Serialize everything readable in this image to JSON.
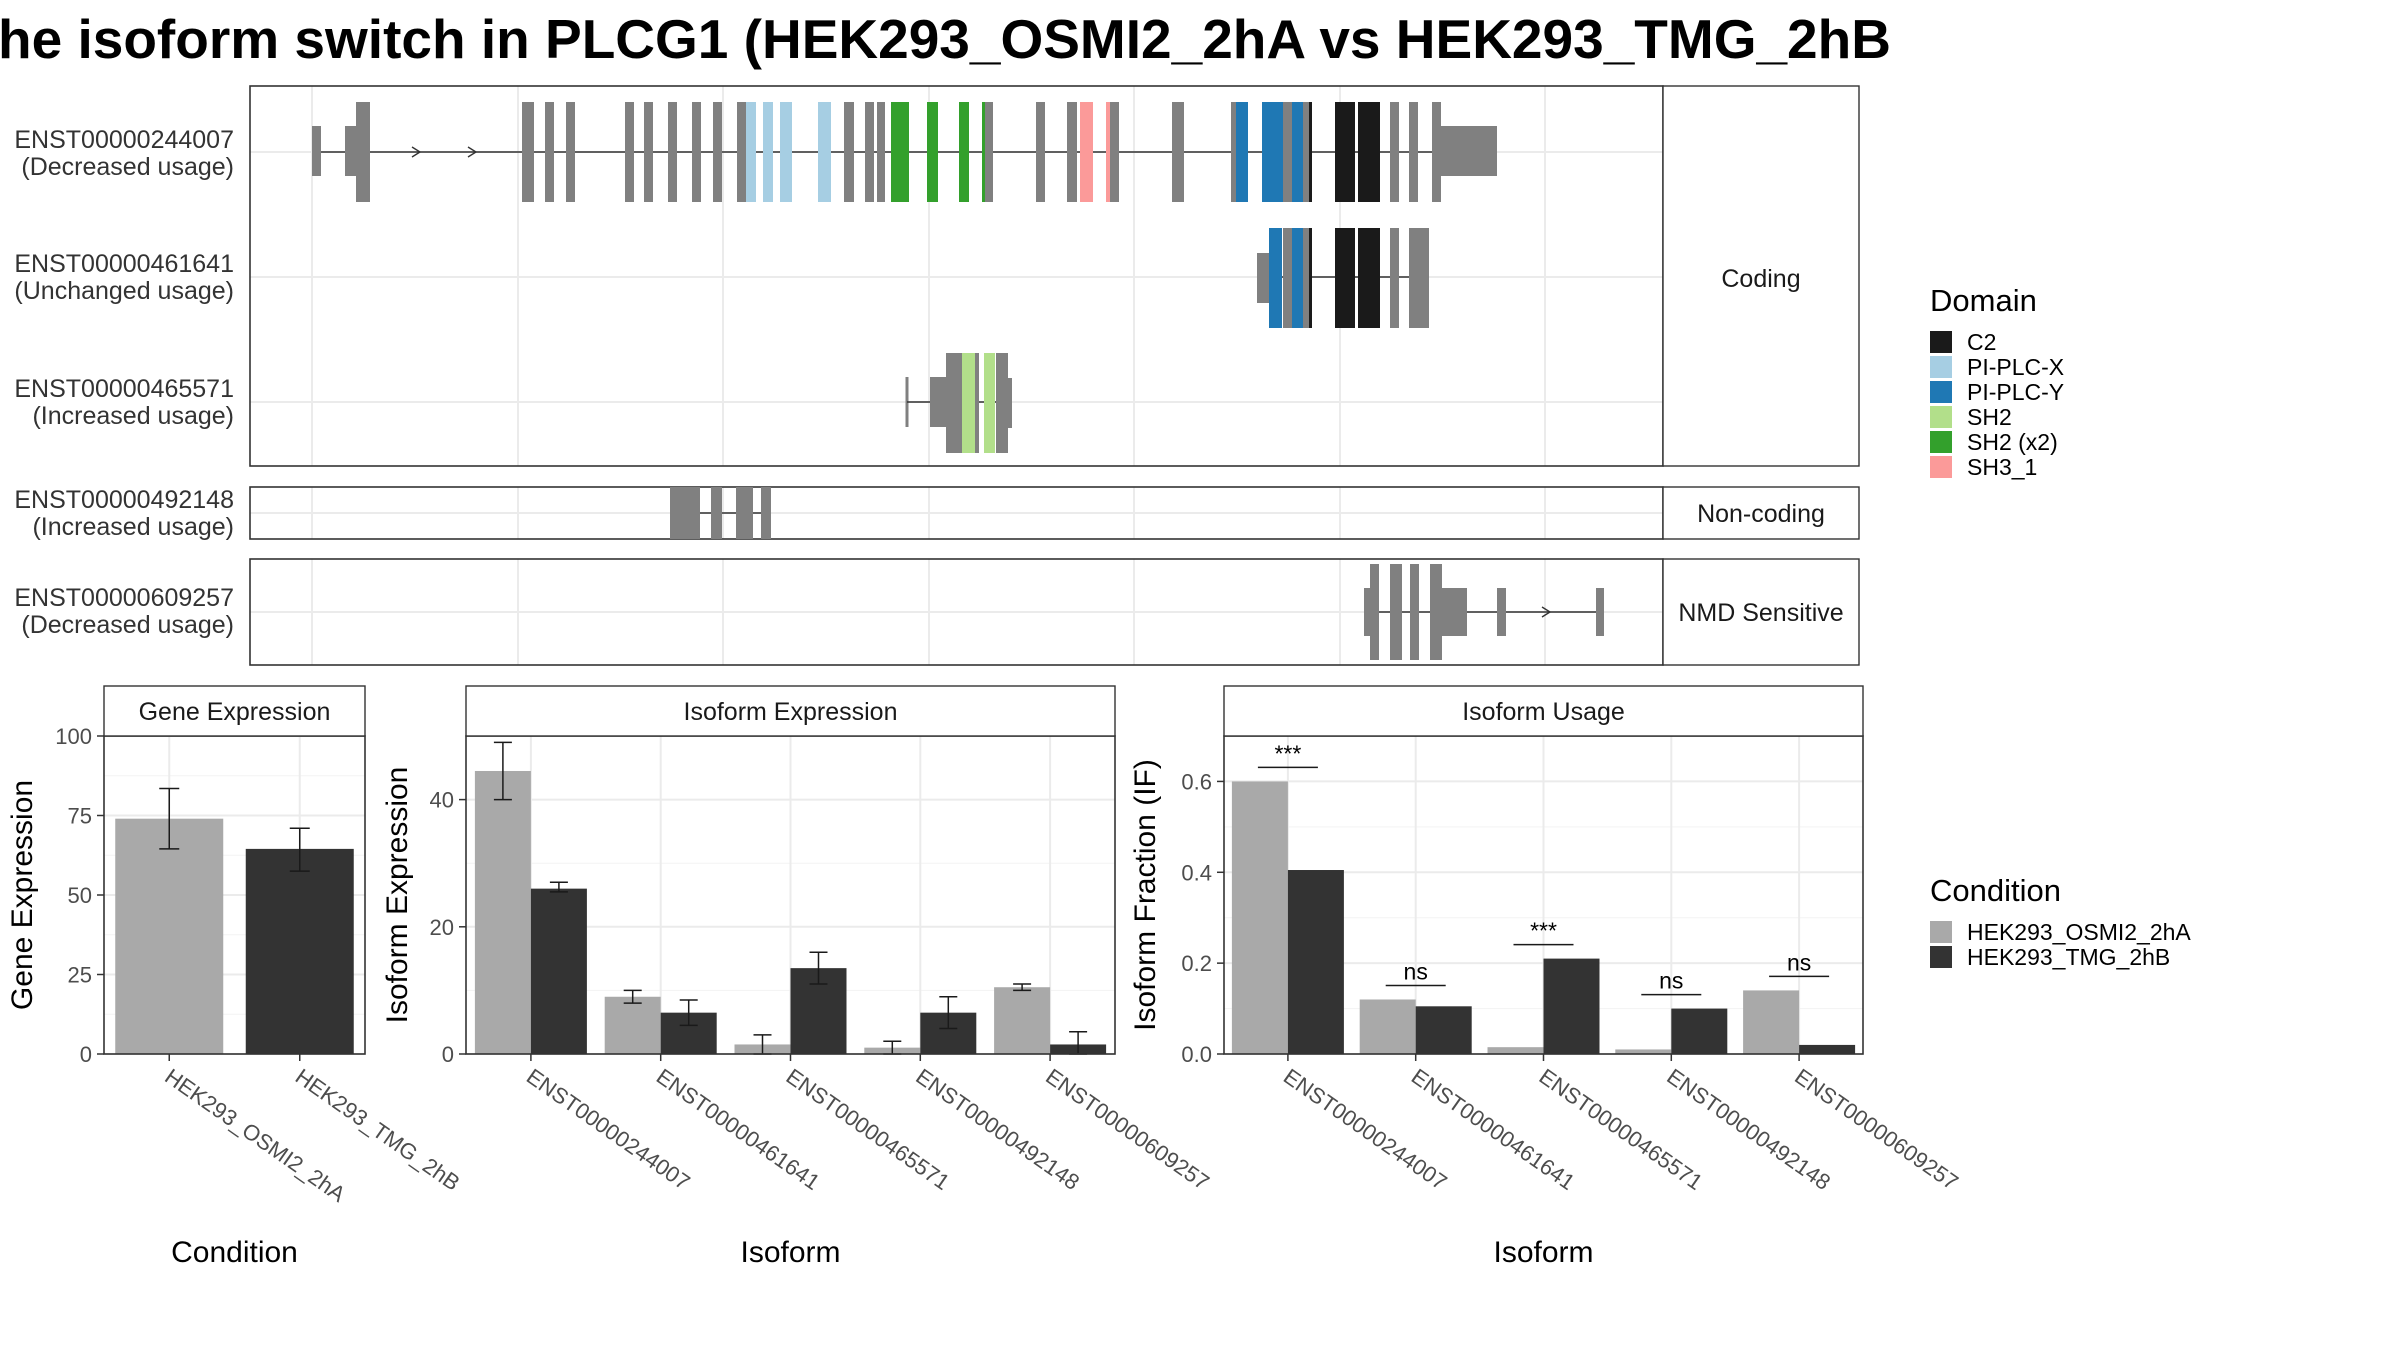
{
  "title": "he isoform switch in PLCG1 (HEK293_OSMI2_2hA vs HEK293_TMG_2hB",
  "colors": {
    "C2": "#1a1a1a",
    "PI-PLC-X": "#a6cee3",
    "PI-PLC-Y": "#1f78b4",
    "SH2": "#b2df8a",
    "SH2 (x2)": "#33a02c",
    "SH3_1": "#fb9a99",
    "exon": "#808080",
    "cond1": "#a9a9a9",
    "cond2": "#333333"
  },
  "transcripts": {
    "t1": {
      "id": "ENST00000244007",
      "usage": "(Decreased usage)"
    },
    "t2": {
      "id": "ENST00000461641",
      "usage": "(Unchanged usage)"
    },
    "t3": {
      "id": "ENST00000465571",
      "usage": "(Increased usage)"
    },
    "t4": {
      "id": "ENST00000492148",
      "usage": "(Increased usage)"
    },
    "t5": {
      "id": "ENST00000609257",
      "usage": "(Decreased usage)"
    }
  },
  "groups": {
    "coding": "Coding",
    "noncoding": "Non-coding",
    "nmd": "NMD Sensitive"
  },
  "legend_domain": {
    "title": "Domain",
    "items": [
      "C2",
      "PI-PLC-X",
      "PI-PLC-Y",
      "SH2",
      "SH2 (x2)",
      "SH3_1"
    ]
  },
  "legend_condition": {
    "title": "Condition",
    "items": [
      "HEK293_OSMI2_2hA",
      "HEK293_TMG_2hB"
    ]
  },
  "chart_data": [
    {
      "type": "bar",
      "title": "Gene Expression",
      "xlabel": "Condition",
      "ylabel": "Gene Expression",
      "categories": [
        "HEK293_OSMI2_2hA",
        "HEK293_TMG_2hB"
      ],
      "values": [
        74,
        64.5
      ],
      "error_low": [
        64.5,
        57.5
      ],
      "error_high": [
        83.5,
        71
      ],
      "ylim": [
        0,
        100
      ],
      "yticks": [
        "0",
        "25",
        "50",
        "75",
        "100"
      ]
    },
    {
      "type": "bar",
      "title": "Isoform Expression",
      "xlabel": "Isoform",
      "ylabel": "Isoform Expression",
      "categories": [
        "ENST00000244007",
        "ENST00000461641",
        "ENST00000465571",
        "ENST00000492148",
        "ENST00000609257"
      ],
      "series": [
        {
          "name": "HEK293_OSMI2_2hA",
          "values": [
            44.5,
            9,
            1.5,
            1,
            10.5
          ],
          "error_low": [
            40,
            8,
            0,
            0,
            10
          ],
          "error_high": [
            49,
            10,
            3,
            2,
            11
          ]
        },
        {
          "name": "HEK293_TMG_2hB",
          "values": [
            26,
            6.5,
            13.5,
            6.5,
            1.5
          ],
          "error_low": [
            25.5,
            4.5,
            11,
            4,
            0
          ],
          "error_high": [
            27,
            8.5,
            16,
            9,
            3.5
          ]
        }
      ],
      "ylim": [
        0,
        50
      ],
      "yticks": [
        "0",
        "20",
        "40"
      ]
    },
    {
      "type": "bar",
      "title": "Isoform Usage",
      "xlabel": "Isoform",
      "ylabel": "Isoform Fraction (IF)",
      "categories": [
        "ENST00000244007",
        "ENST00000461641",
        "ENST00000465571",
        "ENST00000492148",
        "ENST00000609257"
      ],
      "series": [
        {
          "name": "HEK293_OSMI2_2hA",
          "values": [
            0.6,
            0.12,
            0.015,
            0.01,
            0.14
          ]
        },
        {
          "name": "HEK293_TMG_2hB",
          "values": [
            0.405,
            0.105,
            0.21,
            0.1,
            0.02
          ]
        }
      ],
      "significance": [
        "***",
        "ns",
        "***",
        "ns",
        "ns"
      ],
      "ylim": [
        0,
        0.7
      ],
      "yticks": [
        "0.0",
        "0.2",
        "0.4",
        "0.6"
      ]
    }
  ]
}
